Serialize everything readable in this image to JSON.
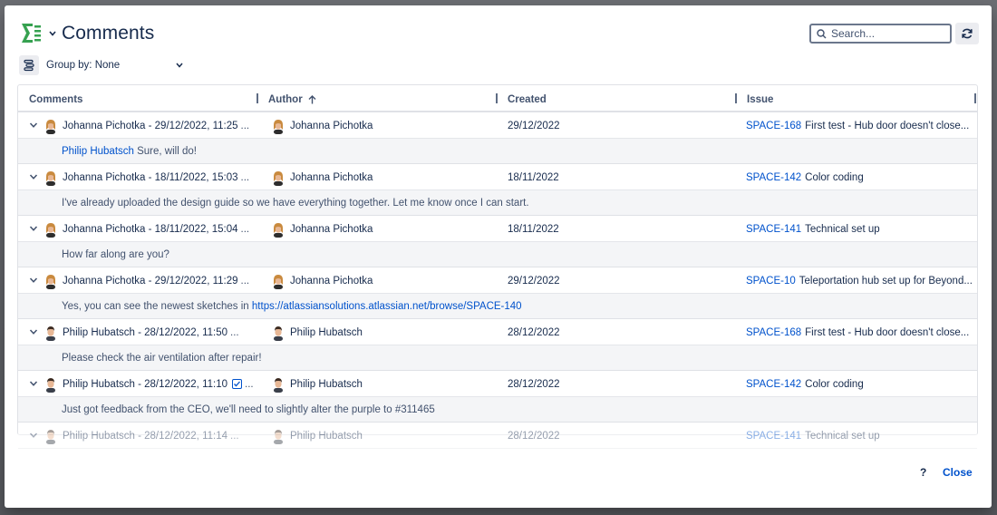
{
  "header": {
    "title": "Comments",
    "search_placeholder": "Search...",
    "group_by_label": "Group by: None"
  },
  "table": {
    "columns": [
      "Comments",
      "Author",
      "Created",
      "Issue"
    ],
    "sort_column": "Author",
    "rows": [
      {
        "comment_meta": "Johanna Pichotka - 29/12/2022, 11:25",
        "more": "...",
        "author": "Johanna Pichotka",
        "avatar": "female",
        "created": "29/12/2022",
        "issue_key": "SPACE-168",
        "issue_title": "First test - Hub door doesn't close...",
        "body_mention": "Philip Hubatsch",
        "body_text": "Sure, will do!"
      },
      {
        "comment_meta": "Johanna Pichotka - 18/11/2022, 15:03",
        "more": "...",
        "author": "Johanna Pichotka",
        "avatar": "female",
        "created": "18/11/2022",
        "issue_key": "SPACE-142",
        "issue_title": "Color coding",
        "body_text": "I've already uploaded the design guide so we have everything together. Let me know once I can start."
      },
      {
        "comment_meta": "Johanna Pichotka - 18/11/2022, 15:04",
        "more": "...",
        "author": "Johanna Pichotka",
        "avatar": "female",
        "created": "18/11/2022",
        "issue_key": "SPACE-141",
        "issue_title": "Technical set up",
        "body_text": "How far along are you?"
      },
      {
        "comment_meta": "Johanna Pichotka - 29/12/2022, 11:29",
        "more": "...",
        "author": "Johanna Pichotka",
        "avatar": "female",
        "created": "29/12/2022",
        "issue_key": "SPACE-10",
        "issue_title": "Teleportation hub set up for Beyond...",
        "body_text": "Yes, you can see the newest sketches in ",
        "body_link": "https://atlassiansolutions.atlassian.net/browse/SPACE-140"
      },
      {
        "comment_meta": "Philip Hubatsch - 28/12/2022, 11:50",
        "more": "...",
        "author": "Philip Hubatsch",
        "avatar": "male",
        "created": "28/12/2022",
        "issue_key": "SPACE-168",
        "issue_title": "First test - Hub door doesn't close...",
        "body_text": "Please check the air ventilation after repair!"
      },
      {
        "comment_meta": "Philip Hubatsch - 28/12/2022, 11:10",
        "more": "...",
        "has_checkbox": true,
        "author": "Philip Hubatsch",
        "avatar": "male",
        "created": "28/12/2022",
        "issue_key": "SPACE-142",
        "issue_title": "Color coding",
        "body_text": "Just got feedback from the CEO, we'll need to slightly alter the purple to #311465"
      },
      {
        "comment_meta": "Philip Hubatsch - 28/12/2022, 11:14",
        "more": "...",
        "author": "Philip Hubatsch",
        "avatar": "male",
        "created": "28/12/2022",
        "issue_key": "SPACE-141",
        "issue_title": "Technical set up",
        "partial": true
      }
    ]
  },
  "footer": {
    "help_label": "?",
    "close_label": "Close"
  },
  "colors": {
    "link": "#0052cc",
    "text": "#172b4d",
    "logo_green": "#36a150"
  }
}
